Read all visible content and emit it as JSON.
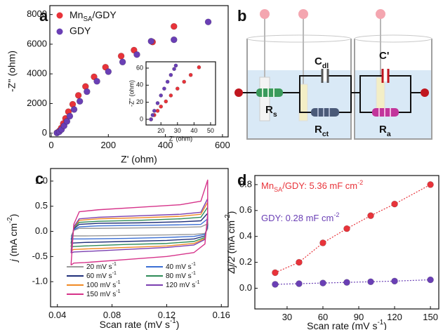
{
  "panels": [
    "a",
    "b",
    "c",
    "d"
  ],
  "diagram": {
    "labels": {
      "cdl": [
        "C",
        {
          "sub": "dl"
        }
      ],
      "c_prime": "C'",
      "rs": [
        "R",
        {
          "sub": "s"
        }
      ],
      "rct": [
        "R",
        {
          "sub": "ct"
        }
      ],
      "ra": [
        "R",
        {
          "sub": "a"
        }
      ]
    }
  },
  "chart_data": [
    {
      "type": "scatter",
      "xlabel": "Z' (ohm)",
      "ylabel": "-Z'' (ohm)",
      "xlim": [
        -5,
        620
      ],
      "ylim": [
        -250,
        8600
      ],
      "xticks": [
        0,
        200,
        400,
        600
      ],
      "yticks": [
        0,
        2000,
        4000,
        6000,
        8000
      ],
      "legend": "upper left",
      "series": [
        {
          "name": [
            "Mn",
            {
              "sub": "SA"
            },
            "/GDY"
          ],
          "color": "#e8333a",
          "x": [
            20,
            28,
            35,
            42,
            50,
            60,
            75,
            95,
            120,
            150,
            190,
            245,
            290,
            355,
            430
          ],
          "values": [
            30,
            150,
            350,
            650,
            1000,
            1450,
            1950,
            2550,
            3150,
            3800,
            4450,
            5200,
            5600,
            6150,
            7200
          ]
        },
        {
          "name": "GDY",
          "color": "#6a3fb5",
          "x": [
            20,
            28,
            36,
            45,
            55,
            65,
            80,
            100,
            125,
            160,
            200,
            250,
            300,
            350,
            430,
            550
          ],
          "values": [
            20,
            100,
            250,
            500,
            800,
            1150,
            1600,
            2150,
            2800,
            3500,
            4150,
            4800,
            5300,
            6200,
            6300,
            7500
          ]
        }
      ]
    },
    {
      "type": "scatter",
      "xlabel": "Z' (ohm)",
      "ylabel": "-Z'' (ohm)",
      "xlim": [
        11,
        53
      ],
      "ylim": [
        -6.6,
        67.4
      ],
      "xticks": [
        20,
        30,
        40,
        50
      ],
      "yticks": [
        0,
        20,
        40,
        60
      ],
      "series": [
        {
          "color": "#e8333a",
          "x": [
            14,
            16,
            18,
            20,
            23,
            26,
            30,
            34,
            38,
            43
          ],
          "values": [
            0,
            5,
            10,
            15,
            21,
            28,
            36,
            44,
            52,
            61
          ]
        },
        {
          "color": "#6a3fb5",
          "x": [
            14,
            15,
            16,
            18,
            20,
            22,
            24,
            26,
            28,
            29
          ],
          "values": [
            0,
            5,
            10,
            19,
            28,
            36,
            44,
            52,
            59,
            63
          ]
        }
      ]
    },
    {
      "type": "line",
      "xlabel": [
        "Scan rate (mV s",
        {
          "sup": "-1"
        },
        ")"
      ],
      "ylabel": [
        {
          "it": "j"
        },
        " (mA cm",
        {
          "sup": "-2"
        },
        ")"
      ],
      "xlim": [
        0.035,
        0.165
      ],
      "ylim": [
        -1.5,
        1.25
      ],
      "xticks": [
        0.04,
        0.08,
        0.12,
        0.16
      ],
      "yticks": [
        {
          "value": -1,
          "label": "-1.0"
        },
        -0.5,
        {
          "value": 0,
          "label": "0.0"
        },
        0.5,
        {
          "value": 1,
          "label": "1.0"
        }
      ],
      "legend": "lower right",
      "x": [
        0.05,
        0.052,
        0.056,
        0.07,
        0.1,
        0.13,
        0.145,
        0.15,
        0.15,
        0.148,
        0.14,
        0.12,
        0.09,
        0.06,
        0.052,
        0.05
      ],
      "series": [
        {
          "name": [
            "20 mV s",
            {
              "sup": "-1"
            }
          ],
          "color": "#9a9a9a",
          "values": [
            -0.1,
            0.02,
            0.06,
            0.06,
            0.07,
            0.08,
            0.09,
            0.15,
            0.05,
            -0.04,
            -0.06,
            -0.07,
            -0.08,
            -0.09,
            -0.09,
            -0.1
          ]
        },
        {
          "name": [
            "40 mV s",
            {
              "sup": "-1"
            }
          ],
          "color": "#3b6fd4",
          "values": [
            -0.16,
            0.03,
            0.09,
            0.11,
            0.12,
            0.13,
            0.14,
            0.25,
            0.09,
            -0.06,
            -0.1,
            -0.12,
            -0.14,
            -0.15,
            -0.15,
            -0.16
          ]
        },
        {
          "name": [
            "60 mV s",
            {
              "sup": "-1"
            }
          ],
          "color": "#1f2f7a",
          "values": [
            -0.24,
            0.05,
            0.14,
            0.16,
            0.17,
            0.19,
            0.21,
            0.36,
            0.13,
            -0.09,
            -0.15,
            -0.18,
            -0.2,
            -0.22,
            -0.23,
            -0.24
          ]
        },
        {
          "name": [
            "80 mV s",
            {
              "sup": "-1"
            }
          ],
          "color": "#2e8b57",
          "values": [
            -0.31,
            0.07,
            0.18,
            0.2,
            0.22,
            0.25,
            0.28,
            0.48,
            0.17,
            -0.12,
            -0.2,
            -0.24,
            -0.26,
            -0.29,
            -0.3,
            -0.31
          ]
        },
        {
          "name": [
            "100 mV s",
            {
              "sup": "-1"
            }
          ],
          "color": "#f08a24",
          "values": [
            -0.38,
            0.08,
            0.22,
            0.25,
            0.27,
            0.3,
            0.34,
            0.58,
            0.2,
            -0.14,
            -0.24,
            -0.29,
            -0.32,
            -0.35,
            -0.36,
            -0.38
          ]
        },
        {
          "name": [
            "120 mV s",
            {
              "sup": "-1"
            }
          ],
          "color": "#7b3fb0",
          "values": [
            -0.43,
            0.09,
            0.25,
            0.28,
            0.31,
            0.34,
            0.38,
            0.65,
            0.23,
            -0.16,
            -0.27,
            -0.32,
            -0.36,
            -0.4,
            -0.41,
            -0.43
          ]
        },
        {
          "name": [
            "150 mV s",
            {
              "sup": "-1"
            }
          ],
          "color": "#d6338a",
          "values": [
            -0.67,
            0.14,
            0.39,
            0.43,
            0.48,
            0.53,
            0.6,
            1.02,
            0.35,
            -0.25,
            -0.42,
            -0.5,
            -0.56,
            -0.62,
            -0.63,
            -0.67
          ]
        }
      ]
    },
    {
      "type": "scatter",
      "xlabel": [
        "Scan rate (mV s",
        {
          "sup": "-1"
        },
        ")"
      ],
      "ylabel": [
        {
          "it": "Δj/2"
        },
        " (mA cm",
        {
          "sup": "-2"
        },
        ")"
      ],
      "xlim": [
        3,
        157
      ],
      "ylim": [
        -0.16,
        0.87
      ],
      "xticks": [
        30,
        60,
        90,
        120,
        150
      ],
      "yticks": [
        {
          "value": 0,
          "label": "0.0"
        },
        0.2,
        0.4,
        0.6,
        0.8
      ],
      "annotations": [
        {
          "text": [
            "Mn",
            {
              "sub": "SA"
            },
            "/GDY: 5.36 mF cm",
            {
              "sup": "-2"
            }
          ],
          "color": "#e8333a"
        },
        {
          "text": [
            "GDY: 0.28 mF cm",
            {
              "sup": "-2"
            }
          ],
          "color": "#6a3fb5"
        }
      ],
      "series": [
        {
          "color": "#e8333a",
          "linestyle": "dotted",
          "x": [
            20,
            40,
            60,
            80,
            100,
            120,
            150
          ],
          "values": [
            0.12,
            0.2,
            0.35,
            0.46,
            0.56,
            0.65,
            0.8
          ]
        },
        {
          "color": "#6a3fb5",
          "linestyle": "dotted",
          "x": [
            20,
            40,
            60,
            80,
            100,
            120,
            150
          ],
          "values": [
            0.03,
            0.035,
            0.04,
            0.045,
            0.05,
            0.055,
            0.065
          ]
        }
      ]
    }
  ]
}
